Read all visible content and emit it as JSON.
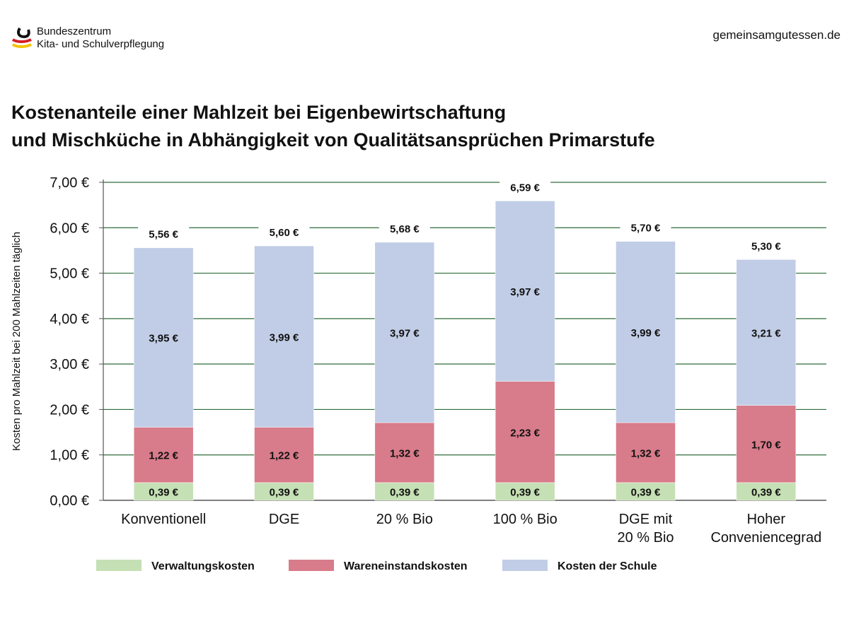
{
  "header": {
    "org_line1": "Bundeszentrum",
    "org_line2": "Kita- und Schulverpflegung",
    "website": "gemeinsamgutessen.de"
  },
  "chart_data": {
    "type": "bar",
    "stacked": true,
    "title_line1": "Kostenanteile einer Mahlzeit bei Eigenbewirtschaftung",
    "title_line2": "und Mischküche in Abhängigkeit von Qualitätsansprüchen Primarstufe",
    "ylabel": "Kosten pro Mahlzeit bei 200 Mahlzeiten täglich",
    "xlabel": "",
    "ylim": [
      0,
      7
    ],
    "yticks": [
      "0,00 €",
      "1,00 €",
      "2,00 €",
      "3,00 €",
      "4,00 €",
      "5,00 €",
      "6,00 €",
      "7,00 €"
    ],
    "grid": true,
    "legend_position": "bottom",
    "categories": [
      [
        "Konventionell"
      ],
      [
        "DGE"
      ],
      [
        "20 % Bio"
      ],
      [
        "100 % Bio"
      ],
      [
        "DGE mit",
        "20 % Bio"
      ],
      [
        "Hoher",
        "Conveniencegrad"
      ]
    ],
    "series": [
      {
        "name": "Verwaltungskosten",
        "color": "#c5e0b4",
        "values": [
          0.39,
          0.39,
          0.39,
          0.39,
          0.39,
          0.39
        ],
        "labels": [
          "0,39 €",
          "0,39 €",
          "0,39 €",
          "0,39 €",
          "0,39 €",
          "0,39 €"
        ]
      },
      {
        "name": "Wareneinstandskosten",
        "color": "#d87b8a",
        "values": [
          1.22,
          1.22,
          1.32,
          2.23,
          1.32,
          1.7
        ],
        "labels": [
          "1,22 €",
          "1,22 €",
          "1,32 €",
          "2,23 €",
          "1,32 €",
          "1,70 €"
        ]
      },
      {
        "name": "Kosten der Schule",
        "color": "#c1cde6",
        "values": [
          3.95,
          3.99,
          3.97,
          3.97,
          3.99,
          3.21
        ],
        "labels": [
          "3,95 €",
          "3,99 €",
          "3,97 €",
          "3,97 €",
          "3,99 €",
          "3,21 €"
        ]
      }
    ],
    "totals": [
      5.56,
      5.6,
      5.68,
      6.59,
      5.7,
      5.3
    ],
    "total_labels": [
      "5,56 €",
      "5,60 €",
      "5,68 €",
      "6,59 €",
      "5,70 €",
      "5,30 €"
    ]
  }
}
